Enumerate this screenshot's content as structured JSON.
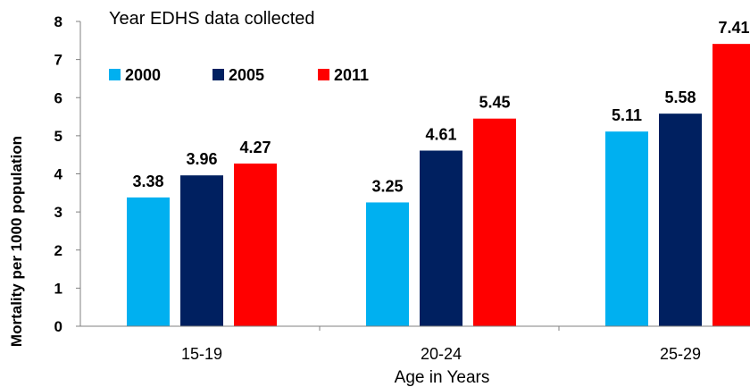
{
  "chart_data": {
    "type": "bar",
    "title": "Year EDHS data collected",
    "xlabel": "Age in Years",
    "ylabel": "Mortality per 1000 population",
    "categories": [
      "15-19",
      "20-24",
      "25-29"
    ],
    "ylim": [
      0,
      8
    ],
    "yticks": [
      0,
      1,
      2,
      3,
      4,
      5,
      6,
      7,
      8
    ],
    "grid": false,
    "legend_position": "top-left",
    "series": [
      {
        "name": "2000",
        "color": "#00B0F0",
        "values": [
          3.38,
          3.25,
          5.11
        ]
      },
      {
        "name": "2005",
        "color": "#002060",
        "values": [
          3.96,
          4.61,
          5.58
        ]
      },
      {
        "name": "2011",
        "color": "#FF0000",
        "values": [
          4.27,
          5.45,
          7.41
        ]
      }
    ]
  }
}
